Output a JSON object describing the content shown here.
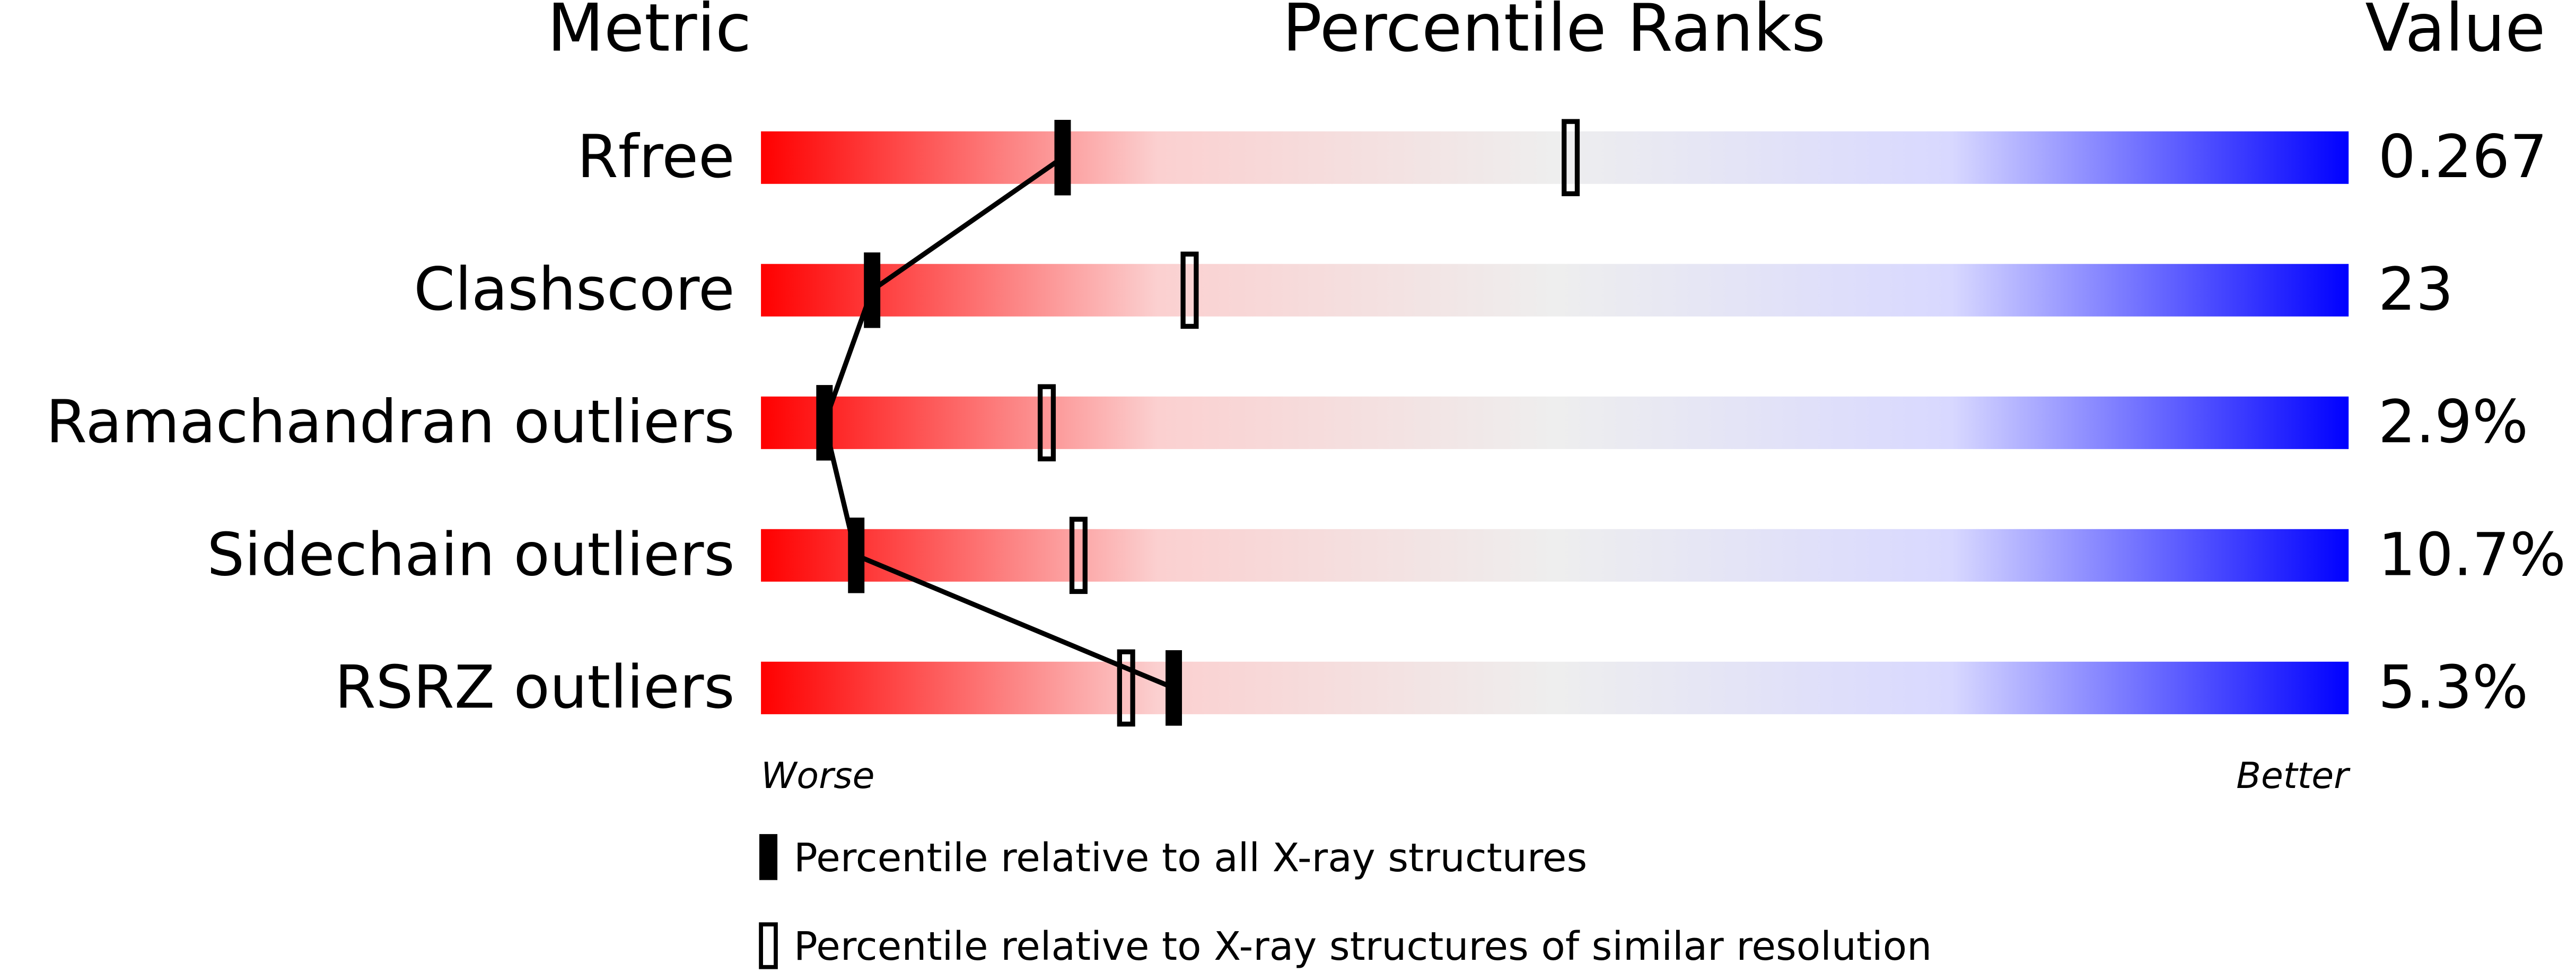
{
  "chart_data": {
    "type": "percentile",
    "title": "Percentile Ranks",
    "metric_header": "Metric",
    "value_header": "Value",
    "categories": [
      "Rfree",
      "Clashscore",
      "Ramachandran outliers",
      "Sidechain outliers",
      "RSRZ outliers"
    ],
    "metric_values": [
      "0.267",
      "23",
      "2.9%",
      "10.7%",
      "5.3%"
    ],
    "series": [
      {
        "name": "Percentile relative to all X-ray structures",
        "color": "#000000",
        "marker": "filled",
        "values": [
          19,
          7,
          4,
          6,
          26
        ]
      },
      {
        "name": "Percentile relative to X-ray structures of similar resolution",
        "color": "#000000",
        "marker": "hollow",
        "values": [
          51,
          27,
          18,
          20,
          23
        ]
      }
    ],
    "xlim": [
      0,
      100
    ],
    "worse_label": "Worse",
    "better_label": "Better",
    "gradient": [
      "#ff0000",
      "#fbd0d0",
      "#eeeeee",
      "#d8d8ff",
      "#0000ff"
    ]
  }
}
